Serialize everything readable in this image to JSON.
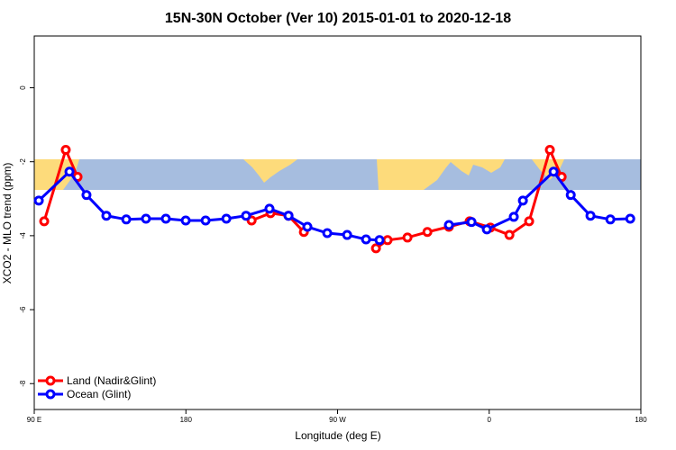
{
  "chart_data": {
    "type": "line",
    "title": "15N-30N October (Ver 10)   2015-01-01 to 2020-12-18",
    "xlabel": "Longitude (deg E)",
    "ylabel": "XCO2 - MLO trend (ppm)",
    "xlim": [
      90,
      450
    ],
    "ylim": [
      -8.7,
      1.4
    ],
    "xticks": [
      {
        "value": 90,
        "label": "90 E"
      },
      180,
      {
        "value": 270,
        "label": "90 W"
      },
      {
        "value": 360,
        "label": "0"
      },
      {
        "value": 450,
        "label": "180"
      }
    ],
    "yticks": [
      0,
      -2,
      -4,
      -6,
      -8
    ],
    "legend": "bottom-left",
    "series": [
      {
        "name": "Land (Nadir&Glint)",
        "color": "#ff0000",
        "x": [
          95.9,
          108.7,
          115.7,
          170,
          219,
          230.2,
          240.9,
          250,
          270,
          292.8,
          299.7,
          311.5,
          323.3,
          336.1,
          348.4,
          360.7,
          372,
          383.7,
          396,
          403
        ],
        "values": [
          -3.61,
          -1.68,
          -2.41,
          null,
          -3.59,
          -3.39,
          -3.46,
          -3.9,
          null,
          -4.34,
          -4.12,
          -4.05,
          -3.9,
          -3.76,
          -3.61,
          -3.78,
          -3.98,
          -3.61,
          -1.68,
          -2.41
        ]
      },
      {
        "name": "Ocean (Glint)",
        "color": "#0000ff",
        "x": [
          92.7,
          110.9,
          121,
          132.8,
          144.6,
          156.3,
          168.1,
          179.9,
          191.7,
          204,
          215.7,
          229.6,
          240.9,
          252.1,
          263.9,
          275.7,
          286.9,
          294.9,
          315,
          336.1,
          349.5,
          358.6,
          374.6,
          380,
          398.2,
          408.4,
          420.1,
          431.9,
          443.7
        ],
        "values": [
          -3.05,
          -2.27,
          -2.9,
          -3.46,
          -3.56,
          -3.54,
          -3.54,
          -3.59,
          -3.59,
          -3.54,
          -3.46,
          -3.27,
          -3.46,
          -3.76,
          -3.93,
          -3.98,
          -4.1,
          -4.12,
          null,
          -3.71,
          -3.63,
          -3.83,
          -3.49,
          -3.05,
          -2.27,
          -2.9,
          -3.46,
          -3.56,
          -3.54
        ]
      }
    ]
  }
}
